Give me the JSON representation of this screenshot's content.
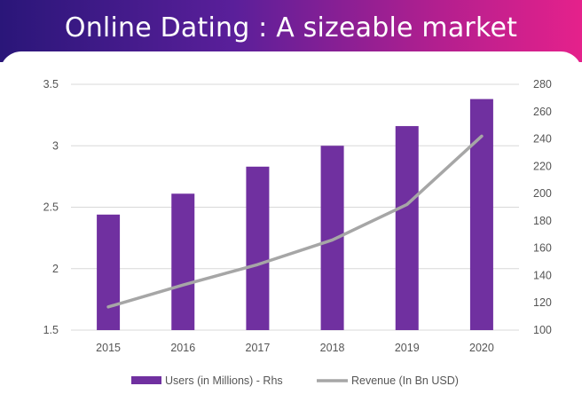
{
  "banner": {
    "title": "Online Dating : A sizeable market"
  },
  "chart_data": {
    "type": "bar",
    "categories": [
      "2015",
      "2016",
      "2017",
      "2018",
      "2019",
      "2020"
    ],
    "series": [
      {
        "name": "Users (in Millions) - Rhs",
        "kind": "bar",
        "axis": "left",
        "color": "#7030a0",
        "values": [
          2.44,
          2.61,
          2.83,
          3.0,
          3.16,
          3.38
        ]
      },
      {
        "name": "Revenue (In Bn USD)",
        "kind": "line",
        "axis": "right",
        "color": "#a6a6a6",
        "values": [
          117,
          133,
          148,
          166,
          192,
          242
        ]
      }
    ],
    "y_left": {
      "min": 1.5,
      "max": 3.5,
      "ticks": [
        "1.5",
        "2",
        "2.5",
        "3",
        "3.5"
      ]
    },
    "y_right": {
      "min": 100,
      "max": 280,
      "ticks": [
        "100",
        "120",
        "140",
        "160",
        "180",
        "200",
        "220",
        "240",
        "260",
        "280"
      ]
    },
    "grid": true,
    "legend": "bottom"
  }
}
